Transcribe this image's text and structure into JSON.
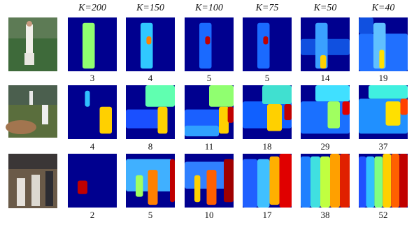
{
  "columns": [
    "K=200",
    "K=150",
    "K=100",
    "K=75",
    "K=50",
    "K=40"
  ],
  "rows": [
    {
      "counts": [
        3,
        4,
        5,
        5,
        14,
        19
      ]
    },
    {
      "counts": [
        4,
        8,
        11,
        18,
        29,
        37
      ]
    },
    {
      "counts": [
        2,
        5,
        10,
        17,
        38,
        52
      ]
    }
  ]
}
